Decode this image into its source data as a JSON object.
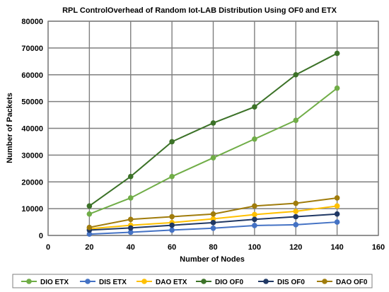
{
  "chart_data": {
    "type": "line",
    "title": "RPL ControlOverhead of Random Iot-LAB Distribution Using OF0 and ETX",
    "xlabel": "Number  of Nodes",
    "ylabel": "Number of Packets",
    "xlim": [
      0,
      160
    ],
    "ylim": [
      0,
      80000
    ],
    "xticks": [
      0,
      20,
      40,
      60,
      80,
      100,
      120,
      140,
      160
    ],
    "yticks": [
      0,
      10000,
      20000,
      30000,
      40000,
      50000,
      60000,
      70000,
      80000
    ],
    "grid": true,
    "legend_position": "bottom",
    "x": [
      20,
      40,
      60,
      80,
      100,
      120,
      140
    ],
    "series": [
      {
        "name": "DIO  ETX",
        "color": "#70ad47",
        "values": [
          8000,
          14000,
          22000,
          29000,
          36000,
          43000,
          55000
        ]
      },
      {
        "name": "DIS ETX",
        "color": "#4472c4",
        "values": [
          500,
          1200,
          2000,
          2700,
          3700,
          4000,
          5000
        ]
      },
      {
        "name": "DAO ETX",
        "color": "#ffc000",
        "values": [
          2500,
          3800,
          4800,
          6200,
          7800,
          9000,
          11000
        ]
      },
      {
        "name": "DIO  OF0",
        "color": "#3c7228",
        "values": [
          11000,
          22000,
          35000,
          42000,
          48000,
          60000,
          68000
        ]
      },
      {
        "name": "DIS OF0",
        "color": "#203864",
        "values": [
          2000,
          2800,
          3800,
          4800,
          6000,
          7000,
          8000
        ]
      },
      {
        "name": "DAO OF0",
        "color": "#a07c0c",
        "values": [
          3000,
          6000,
          7000,
          8000,
          11000,
          12000,
          14000
        ]
      }
    ]
  }
}
